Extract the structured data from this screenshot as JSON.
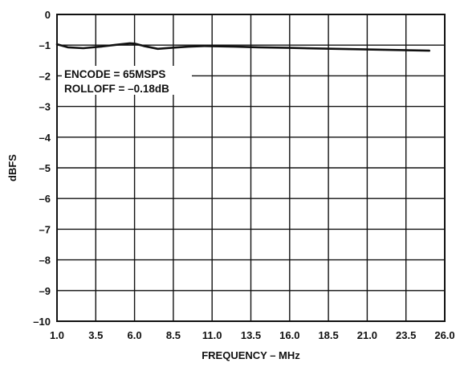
{
  "chart_data": {
    "type": "line",
    "title": "",
    "xlabel": "FREQUENCY – MHz",
    "ylabel": "dBFS",
    "xlim": [
      1.0,
      26.0
    ],
    "ylim": [
      -10,
      0
    ],
    "x_ticks": [
      1.0,
      3.5,
      6.0,
      8.5,
      11.0,
      13.5,
      16.0,
      18.5,
      21.0,
      23.5,
      26.0
    ],
    "x_tick_labels": [
      "1.0",
      "3.5",
      "6.0",
      "8.5",
      "11.0",
      "13.5",
      "16.0",
      "18.5",
      "21.0",
      "23.5",
      "26.0"
    ],
    "y_ticks": [
      0,
      -1,
      -2,
      -3,
      -4,
      -5,
      -6,
      -7,
      -8,
      -9,
      -10
    ],
    "y_tick_labels": [
      "0",
      "–1",
      "–2",
      "–3",
      "–4",
      "–5",
      "–6",
      "–7",
      "–8",
      "–9",
      "–10"
    ],
    "grid": true,
    "annotations": [
      "ENCODE = 65MSPS",
      "ROLLOFF = –0.18dB"
    ],
    "series": [
      {
        "x": [
          1.0,
          1.7,
          2.7,
          3.8,
          4.8,
          5.7,
          6.0,
          6.6,
          7.5,
          8.5,
          9.5,
          10.5,
          11.5,
          12.5,
          14.0,
          16.0,
          18.0,
          20.0,
          22.0,
          24.0,
          25.0
        ],
        "y": [
          -0.97,
          -1.07,
          -1.1,
          -1.05,
          -0.99,
          -0.94,
          -0.95,
          -1.03,
          -1.12,
          -1.08,
          -1.05,
          -1.03,
          -1.04,
          -1.05,
          -1.07,
          -1.09,
          -1.11,
          -1.13,
          -1.15,
          -1.17,
          -1.18
        ],
        "color": "#111111"
      }
    ]
  }
}
